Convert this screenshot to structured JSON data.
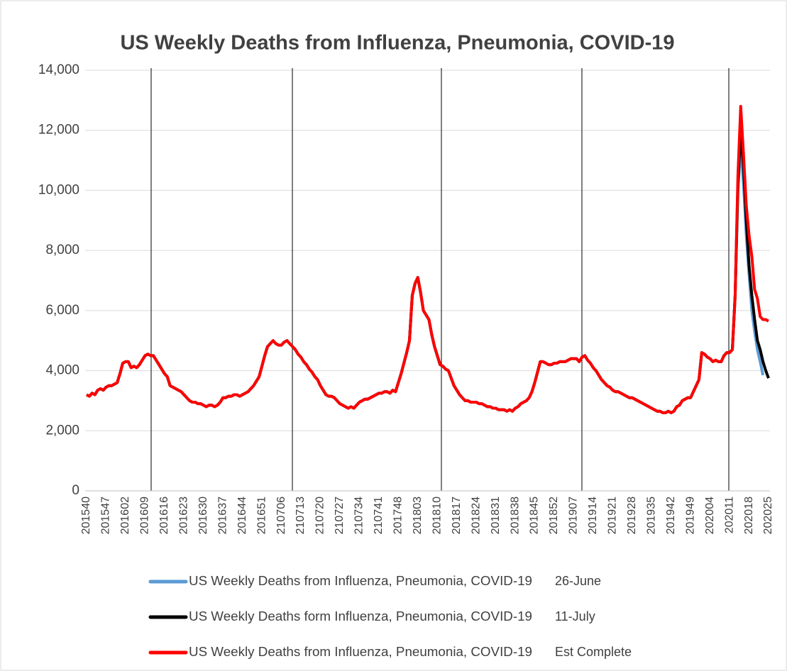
{
  "chart_data": {
    "type": "line",
    "title": "US Weekly Deaths from Influenza, Pneumonia, COVID-19",
    "categories": [
      "201540",
      null,
      null,
      null,
      null,
      null,
      null,
      "201547",
      null,
      null,
      null,
      null,
      null,
      null,
      "201602",
      null,
      null,
      null,
      null,
      null,
      null,
      "201609",
      null,
      null,
      null,
      null,
      null,
      null,
      "201616",
      null,
      null,
      null,
      null,
      null,
      null,
      "201623",
      null,
      null,
      null,
      null,
      null,
      null,
      "201630",
      null,
      null,
      null,
      null,
      null,
      null,
      "201637",
      null,
      null,
      null,
      null,
      null,
      null,
      "201644",
      null,
      null,
      null,
      null,
      null,
      null,
      "201651",
      null,
      null,
      null,
      null,
      null,
      null,
      "210706",
      null,
      null,
      null,
      null,
      null,
      null,
      "210713",
      null,
      null,
      null,
      null,
      null,
      null,
      "210720",
      null,
      null,
      null,
      null,
      null,
      null,
      "210727",
      null,
      null,
      null,
      null,
      null,
      null,
      "210734",
      null,
      null,
      null,
      null,
      null,
      null,
      "210741",
      null,
      null,
      null,
      null,
      null,
      null,
      "201748",
      null,
      null,
      null,
      null,
      null,
      null,
      "201803",
      null,
      null,
      null,
      null,
      null,
      null,
      "201810",
      null,
      null,
      null,
      null,
      null,
      null,
      "201817",
      null,
      null,
      null,
      null,
      null,
      null,
      "201824",
      null,
      null,
      null,
      null,
      null,
      null,
      "201831",
      null,
      null,
      null,
      null,
      null,
      null,
      "201838",
      null,
      null,
      null,
      null,
      null,
      null,
      "201845",
      null,
      null,
      null,
      null,
      null,
      null,
      "201852",
      null,
      null,
      null,
      null,
      null,
      null,
      "201907",
      null,
      null,
      null,
      null,
      null,
      null,
      "201914",
      null,
      null,
      null,
      null,
      null,
      null,
      "201921",
      null,
      null,
      null,
      null,
      null,
      null,
      "201928",
      null,
      null,
      null,
      null,
      null,
      null,
      "201935",
      null,
      null,
      null,
      null,
      null,
      null,
      "201942",
      null,
      null,
      null,
      null,
      null,
      null,
      "201949",
      null,
      null,
      null,
      null,
      null,
      null,
      "202004",
      null,
      null,
      null,
      null,
      null,
      null,
      "202011",
      null,
      null,
      null,
      null,
      null,
      null,
      "202018",
      null,
      null,
      null,
      null,
      null,
      null,
      "202025"
    ],
    "series": [
      {
        "name": "US Weekly Deaths from Influenza, Pneumonia, COVID-19",
        "version": "26-June",
        "color": "#5b9bd5",
        "values": [
          3200,
          3150,
          3250,
          3200,
          3350,
          3400,
          3350,
          3450,
          3500,
          3500,
          3550,
          3600,
          3900,
          4250,
          4300,
          4300,
          4100,
          4150,
          4100,
          4200,
          4350,
          4500,
          4550,
          4500,
          4500,
          4350,
          4200,
          4050,
          3900,
          3800,
          3500,
          3450,
          3400,
          3350,
          3300,
          3200,
          3100,
          3000,
          2950,
          2950,
          2900,
          2900,
          2850,
          2800,
          2850,
          2850,
          2800,
          2850,
          2950,
          3100,
          3100,
          3150,
          3150,
          3200,
          3200,
          3150,
          3200,
          3250,
          3300,
          3400,
          3500,
          3650,
          3800,
          4150,
          4500,
          4800,
          4900,
          5000,
          4900,
          4850,
          4850,
          4950,
          5000,
          4900,
          4800,
          4700,
          4550,
          4450,
          4300,
          4200,
          4050,
          3950,
          3800,
          3700,
          3500,
          3350,
          3200,
          3150,
          3150,
          3100,
          3000,
          2900,
          2850,
          2800,
          2750,
          2800,
          2750,
          2850,
          2950,
          3000,
          3050,
          3050,
          3100,
          3150,
          3200,
          3250,
          3250,
          3300,
          3300,
          3250,
          3350,
          3300,
          3600,
          3900,
          4250,
          4600,
          5000,
          6500,
          6900,
          7100,
          6600,
          6000,
          5850,
          5700,
          5200,
          4800,
          4500,
          4200,
          4150,
          4050,
          4000,
          3750,
          3500,
          3350,
          3200,
          3100,
          3000,
          3000,
          2950,
          2950,
          2950,
          2900,
          2900,
          2850,
          2800,
          2800,
          2750,
          2750,
          2700,
          2700,
          2700,
          2650,
          2700,
          2650,
          2750,
          2800,
          2900,
          2950,
          3000,
          3100,
          3300,
          3600,
          3950,
          4300,
          4300,
          4250,
          4200,
          4200,
          4250,
          4250,
          4300,
          4300,
          4300,
          4350,
          4400,
          4400,
          4400,
          4300,
          4450,
          4500,
          4350,
          4250,
          4100,
          4000,
          3850,
          3700,
          3600,
          3500,
          3450,
          3350,
          3300,
          3300,
          3250,
          3200,
          3150,
          3100,
          3100,
          3050,
          3000,
          2950,
          2900,
          2850,
          2800,
          2750,
          2700,
          2650,
          2650,
          2600,
          2600,
          2650,
          2600,
          2650,
          2800,
          2850,
          3000,
          3050,
          3100,
          3100,
          3300,
          3500,
          3700,
          4600,
          4550,
          4450,
          4400,
          4300,
          4350,
          4300,
          4300,
          4500,
          4600,
          4600,
          4700,
          6500,
          10000,
          11500,
          10200,
          8500,
          7200,
          6000,
          5300,
          4700,
          4300,
          3850,
          null,
          null
        ]
      },
      {
        "name": "US Weekly Deaths form Influenza, Pneumonia, COVID-19",
        "version": "11-July",
        "color": "#000000",
        "values": [
          3200,
          3150,
          3250,
          3200,
          3350,
          3400,
          3350,
          3450,
          3500,
          3500,
          3550,
          3600,
          3900,
          4250,
          4300,
          4300,
          4100,
          4150,
          4100,
          4200,
          4350,
          4500,
          4550,
          4500,
          4500,
          4350,
          4200,
          4050,
          3900,
          3800,
          3500,
          3450,
          3400,
          3350,
          3300,
          3200,
          3100,
          3000,
          2950,
          2950,
          2900,
          2900,
          2850,
          2800,
          2850,
          2850,
          2800,
          2850,
          2950,
          3100,
          3100,
          3150,
          3150,
          3200,
          3200,
          3150,
          3200,
          3250,
          3300,
          3400,
          3500,
          3650,
          3800,
          4150,
          4500,
          4800,
          4900,
          5000,
          4900,
          4850,
          4850,
          4950,
          5000,
          4900,
          4800,
          4700,
          4550,
          4450,
          4300,
          4200,
          4050,
          3950,
          3800,
          3700,
          3500,
          3350,
          3200,
          3150,
          3150,
          3100,
          3000,
          2900,
          2850,
          2800,
          2750,
          2800,
          2750,
          2850,
          2950,
          3000,
          3050,
          3050,
          3100,
          3150,
          3200,
          3250,
          3250,
          3300,
          3300,
          3250,
          3350,
          3300,
          3600,
          3900,
          4250,
          4600,
          5000,
          6500,
          6900,
          7100,
          6600,
          6000,
          5850,
          5700,
          5200,
          4800,
          4500,
          4200,
          4150,
          4050,
          4000,
          3750,
          3500,
          3350,
          3200,
          3100,
          3000,
          3000,
          2950,
          2950,
          2950,
          2900,
          2900,
          2850,
          2800,
          2800,
          2750,
          2750,
          2700,
          2700,
          2700,
          2650,
          2700,
          2650,
          2750,
          2800,
          2900,
          2950,
          3000,
          3100,
          3300,
          3600,
          3950,
          4300,
          4300,
          4250,
          4200,
          4200,
          4250,
          4250,
          4300,
          4300,
          4300,
          4350,
          4400,
          4400,
          4400,
          4300,
          4450,
          4500,
          4350,
          4250,
          4100,
          4000,
          3850,
          3700,
          3600,
          3500,
          3450,
          3350,
          3300,
          3300,
          3250,
          3200,
          3150,
          3100,
          3100,
          3050,
          3000,
          2950,
          2900,
          2850,
          2800,
          2750,
          2700,
          2650,
          2650,
          2600,
          2600,
          2650,
          2600,
          2650,
          2800,
          2850,
          3000,
          3050,
          3100,
          3100,
          3300,
          3500,
          3700,
          4600,
          4550,
          4450,
          4400,
          4300,
          4350,
          4300,
          4300,
          4500,
          4600,
          4600,
          4700,
          6500,
          10200,
          12000,
          10800,
          9000,
          7500,
          6500,
          5700,
          5000,
          4700,
          4300,
          4000,
          3750
        ]
      },
      {
        "name": "US Weekly Deaths from Influenza, Pneumonia, COVID-19",
        "version": "Est Complete",
        "color": "#ff0000",
        "values": [
          3200,
          3150,
          3250,
          3200,
          3350,
          3400,
          3350,
          3450,
          3500,
          3500,
          3550,
          3600,
          3900,
          4250,
          4300,
          4300,
          4100,
          4150,
          4100,
          4200,
          4350,
          4500,
          4550,
          4500,
          4500,
          4350,
          4200,
          4050,
          3900,
          3800,
          3500,
          3450,
          3400,
          3350,
          3300,
          3200,
          3100,
          3000,
          2950,
          2950,
          2900,
          2900,
          2850,
          2800,
          2850,
          2850,
          2800,
          2850,
          2950,
          3100,
          3100,
          3150,
          3150,
          3200,
          3200,
          3150,
          3200,
          3250,
          3300,
          3400,
          3500,
          3650,
          3800,
          4150,
          4500,
          4800,
          4900,
          5000,
          4900,
          4850,
          4850,
          4950,
          5000,
          4900,
          4800,
          4700,
          4550,
          4450,
          4300,
          4200,
          4050,
          3950,
          3800,
          3700,
          3500,
          3350,
          3200,
          3150,
          3150,
          3100,
          3000,
          2900,
          2850,
          2800,
          2750,
          2800,
          2750,
          2850,
          2950,
          3000,
          3050,
          3050,
          3100,
          3150,
          3200,
          3250,
          3250,
          3300,
          3300,
          3250,
          3350,
          3300,
          3600,
          3900,
          4250,
          4600,
          5000,
          6500,
          6900,
          7100,
          6600,
          6000,
          5850,
          5700,
          5200,
          4800,
          4500,
          4200,
          4150,
          4050,
          4000,
          3750,
          3500,
          3350,
          3200,
          3100,
          3000,
          3000,
          2950,
          2950,
          2950,
          2900,
          2900,
          2850,
          2800,
          2800,
          2750,
          2750,
          2700,
          2700,
          2700,
          2650,
          2700,
          2650,
          2750,
          2800,
          2900,
          2950,
          3000,
          3100,
          3300,
          3600,
          3950,
          4300,
          4300,
          4250,
          4200,
          4200,
          4250,
          4250,
          4300,
          4300,
          4300,
          4350,
          4400,
          4400,
          4400,
          4300,
          4450,
          4500,
          4350,
          4250,
          4100,
          4000,
          3850,
          3700,
          3600,
          3500,
          3450,
          3350,
          3300,
          3300,
          3250,
          3200,
          3150,
          3100,
          3100,
          3050,
          3000,
          2950,
          2900,
          2850,
          2800,
          2750,
          2700,
          2650,
          2650,
          2600,
          2600,
          2650,
          2600,
          2650,
          2800,
          2850,
          3000,
          3050,
          3100,
          3100,
          3300,
          3500,
          3700,
          4600,
          4550,
          4450,
          4400,
          4300,
          4350,
          4300,
          4300,
          4500,
          4600,
          4600,
          4700,
          6500,
          10500,
          12800,
          11200,
          9500,
          8500,
          7800,
          6700,
          6400,
          5800,
          5700,
          5700,
          5650
        ]
      }
    ],
    "ylim": [
      0,
      14000
    ],
    "yticks": [
      0,
      {
        "value": 2000,
        "label": "2,000"
      },
      {
        "value": 4000,
        "label": "4,000"
      },
      {
        "value": 6000,
        "label": "6,000"
      },
      {
        "value": 8000,
        "label": "8,000"
      },
      {
        "value": 10000,
        "label": "10,000"
      },
      {
        "value": 12000,
        "label": "12,000"
      },
      {
        "value": 14000,
        "label": "14,000"
      }
    ],
    "grid": true
  }
}
